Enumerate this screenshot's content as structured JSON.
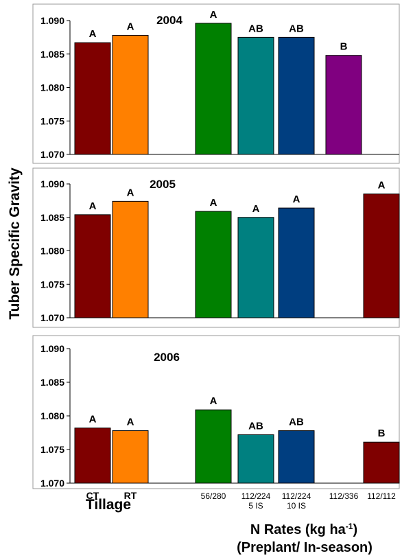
{
  "ylabel": "Tuber Specific Gravity",
  "xlabel_left": "Tillage",
  "xlabel_right_line1": "N Rates (kg ha",
  "xlabel_right_sup": "-1",
  "xlabel_right_close": ")",
  "xlabel_right_line2": "(Preplant/ In-season)",
  "colors": {
    "CT": "#7f0000",
    "RT": "#ff8000",
    "56/280": "#008000",
    "112/224 5 IS": "#008080",
    "112/224 10 IS": "#003e80",
    "112/336": "#800080",
    "112/112": "#7f0000"
  },
  "chart_data": [
    {
      "type": "bar",
      "title": "2004",
      "categories": [
        "CT",
        "RT",
        "56/280",
        "112/224 5 IS",
        "112/224 10 IS",
        "112/336",
        "112/112"
      ],
      "values": [
        1.0867,
        1.0878,
        1.0896,
        1.0875,
        1.0875,
        1.0848,
        null
      ],
      "letters": [
        "A",
        "A",
        "A",
        "AB",
        "AB",
        "B",
        ""
      ],
      "ylim": [
        1.07,
        1.09
      ],
      "yticks": [
        "1.070",
        "1.075",
        "1.080",
        "1.085",
        "1.090"
      ]
    },
    {
      "type": "bar",
      "title": "2005",
      "categories": [
        "CT",
        "RT",
        "56/280",
        "112/224 5 IS",
        "112/224 10 IS",
        "112/336",
        "112/112"
      ],
      "values": [
        1.0854,
        1.0874,
        1.0859,
        1.085,
        1.0864,
        null,
        1.0885
      ],
      "letters": [
        "A",
        "A",
        "A",
        "A",
        "A",
        "",
        "A"
      ],
      "ylim": [
        1.07,
        1.09
      ],
      "yticks": [
        "1.070",
        "1.075",
        "1.080",
        "1.085",
        "1.090"
      ]
    },
    {
      "type": "bar",
      "title": "2006",
      "categories": [
        "CT",
        "RT",
        "56/280",
        "112/224 5 IS",
        "112/224 10 IS",
        "112/336",
        "112/112"
      ],
      "values": [
        1.0782,
        1.0778,
        1.0809,
        1.0772,
        1.0778,
        null,
        1.0761
      ],
      "letters": [
        "A",
        "A",
        "A",
        "AB",
        "AB",
        "",
        "B"
      ],
      "ylim": [
        1.07,
        1.09
      ],
      "yticks": [
        "1.070",
        "1.075",
        "1.080",
        "1.085",
        "1.090"
      ]
    }
  ],
  "xtick_labels": [
    [
      "CT"
    ],
    [
      "RT"
    ],
    [
      "56/280"
    ],
    [
      "112/224",
      "5 IS"
    ],
    [
      "112/224",
      "10 IS"
    ],
    [
      "112/336"
    ],
    [
      "112/112"
    ]
  ]
}
